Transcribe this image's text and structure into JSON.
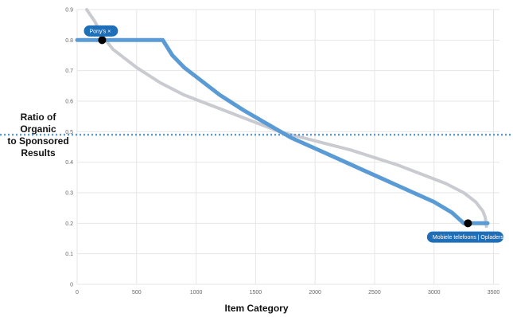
{
  "chart_data": {
    "type": "line",
    "xlabel": "Item Category",
    "ylabel_lines": [
      "Ratio of",
      "Organic",
      "to Sponsored",
      "Results"
    ],
    "xlim": [
      0,
      3550
    ],
    "ylim": [
      0,
      0.9
    ],
    "xticks": [
      0,
      500,
      1000,
      1500,
      2000,
      2500,
      3000,
      3500
    ],
    "yticks": [
      0,
      0.1,
      0.2,
      0.3,
      0.4,
      0.5,
      0.6,
      0.7,
      0.8,
      0.9
    ],
    "grid": true,
    "reference_line": {
      "y": 0.49,
      "style": "dotted",
      "color": "#5b9bd5"
    },
    "series": [
      {
        "color": "#c9cbd0",
        "points": [
          [
            80,
            0.9
          ],
          [
            150,
            0.86
          ],
          [
            200,
            0.82
          ],
          [
            300,
            0.77
          ],
          [
            500,
            0.71
          ],
          [
            700,
            0.66
          ],
          [
            900,
            0.62
          ],
          [
            1100,
            0.59
          ],
          [
            1300,
            0.56
          ],
          [
            1500,
            0.53
          ],
          [
            1700,
            0.5
          ],
          [
            1900,
            0.48
          ],
          [
            2100,
            0.46
          ],
          [
            2300,
            0.44
          ],
          [
            2500,
            0.415
          ],
          [
            2700,
            0.39
          ],
          [
            2900,
            0.36
          ],
          [
            3100,
            0.33
          ],
          [
            3250,
            0.3
          ],
          [
            3350,
            0.27
          ],
          [
            3410,
            0.24
          ],
          [
            3430,
            0.22
          ],
          [
            3440,
            0.19
          ]
        ]
      },
      {
        "color": "#5b9bd5",
        "points": [
          [
            0,
            0.8
          ],
          [
            720,
            0.8
          ],
          [
            800,
            0.75
          ],
          [
            900,
            0.71
          ],
          [
            1000,
            0.68
          ],
          [
            1200,
            0.62
          ],
          [
            1400,
            0.57
          ],
          [
            1600,
            0.525
          ],
          [
            1800,
            0.48
          ],
          [
            2000,
            0.445
          ],
          [
            2200,
            0.41
          ],
          [
            2400,
            0.375
          ],
          [
            2600,
            0.34
          ],
          [
            2800,
            0.305
          ],
          [
            3000,
            0.27
          ],
          [
            3150,
            0.235
          ],
          [
            3250,
            0.2
          ],
          [
            3450,
            0.2
          ]
        ]
      }
    ],
    "markers": [
      {
        "x": 210,
        "y": 0.8,
        "color": "#000000"
      },
      {
        "x": 3285,
        "y": 0.2,
        "color": "#000000"
      }
    ],
    "annotations": [
      {
        "text": "Pony's ×",
        "x": 200,
        "y": 0.83
      },
      {
        "text": "Mobiele telefoons | Opladers en",
        "x": 3275,
        "y": 0.155
      }
    ]
  }
}
